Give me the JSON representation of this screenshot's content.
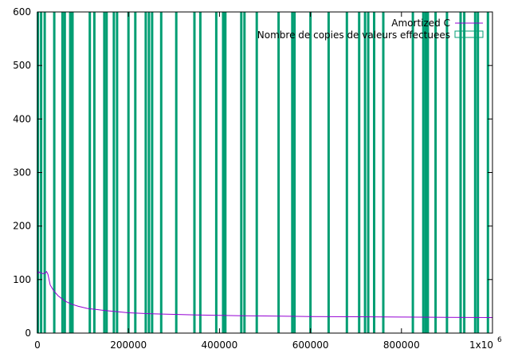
{
  "chart_data": {
    "type": "line",
    "title": "",
    "xlabel": "",
    "ylabel": "",
    "xlim": [
      0,
      1000000
    ],
    "ylim": [
      0,
      600
    ],
    "grid": false,
    "legend_position": "top-right",
    "x_ticks": [
      {
        "value": 0,
        "label": "0"
      },
      {
        "value": 200000,
        "label": "200000"
      },
      {
        "value": 400000,
        "label": "400000"
      },
      {
        "value": 600000,
        "label": "600000"
      },
      {
        "value": 800000,
        "label": "800000"
      },
      {
        "value": 1000000,
        "label": "1x10",
        "superscript": "6"
      }
    ],
    "y_ticks": [
      {
        "value": 0,
        "label": "0"
      },
      {
        "value": 100,
        "label": "100"
      },
      {
        "value": 200,
        "label": "200"
      },
      {
        "value": 300,
        "label": "300"
      },
      {
        "value": 400,
        "label": "400"
      },
      {
        "value": 500,
        "label": "500"
      },
      {
        "value": 600,
        "label": "600"
      }
    ],
    "series": [
      {
        "name": "Amortized C",
        "kind": "line",
        "color": "#9400d3",
        "points": [
          [
            0,
            117
          ],
          [
            2000,
            112
          ],
          [
            5000,
            114
          ],
          [
            8000,
            112
          ],
          [
            12000,
            111
          ],
          [
            17000,
            112
          ],
          [
            20000,
            115
          ],
          [
            23000,
            110
          ],
          [
            28000,
            90
          ],
          [
            35000,
            80
          ],
          [
            45000,
            70
          ],
          [
            60000,
            60
          ],
          [
            75000,
            54
          ],
          [
            90000,
            50
          ],
          [
            110000,
            46
          ],
          [
            130000,
            44
          ],
          [
            150000,
            42
          ],
          [
            175000,
            40
          ],
          [
            200000,
            38
          ],
          [
            250000,
            36
          ],
          [
            300000,
            35
          ],
          [
            350000,
            34
          ],
          [
            400000,
            33
          ],
          [
            450000,
            32.5
          ],
          [
            500000,
            32
          ],
          [
            600000,
            31
          ],
          [
            700000,
            30.5
          ],
          [
            800000,
            30
          ],
          [
            900000,
            29.5
          ],
          [
            1000000,
            29
          ]
        ]
      },
      {
        "name": "Nombre de copies de valeurs effectuees",
        "kind": "impulses",
        "color": "#009e73",
        "impulses": [
          {
            "x": 1000,
            "y": 600
          },
          {
            "x": 8000,
            "y": 600
          },
          {
            "x": 16000,
            "y": 600
          },
          {
            "x": 37000,
            "y": 600
          },
          {
            "x": 55000,
            "y": 600
          },
          {
            "x": 60000,
            "y": 600
          },
          {
            "x": 72000,
            "y": 600
          },
          {
            "x": 77000,
            "y": 600
          },
          {
            "x": 115000,
            "y": 600
          },
          {
            "x": 125000,
            "y": 600
          },
          {
            "x": 147000,
            "y": 600
          },
          {
            "x": 152000,
            "y": 600
          },
          {
            "x": 168000,
            "y": 600
          },
          {
            "x": 175000,
            "y": 600
          },
          {
            "x": 200000,
            "y": 600
          },
          {
            "x": 215000,
            "y": 600
          },
          {
            "x": 238000,
            "y": 600
          },
          {
            "x": 245000,
            "y": 600
          },
          {
            "x": 252000,
            "y": 600
          },
          {
            "x": 272000,
            "y": 600
          },
          {
            "x": 305000,
            "y": 600
          },
          {
            "x": 345000,
            "y": 600
          },
          {
            "x": 358000,
            "y": 600
          },
          {
            "x": 393000,
            "y": 600
          },
          {
            "x": 408000,
            "y": 600
          },
          {
            "x": 413000,
            "y": 600
          },
          {
            "x": 448000,
            "y": 600
          },
          {
            "x": 455000,
            "y": 600
          },
          {
            "x": 482000,
            "y": 600
          },
          {
            "x": 530000,
            "y": 600
          },
          {
            "x": 560000,
            "y": 600
          },
          {
            "x": 565000,
            "y": 600
          },
          {
            "x": 600000,
            "y": 600
          },
          {
            "x": 640000,
            "y": 600
          },
          {
            "x": 680000,
            "y": 600
          },
          {
            "x": 707000,
            "y": 600
          },
          {
            "x": 720000,
            "y": 600
          },
          {
            "x": 727000,
            "y": 600
          },
          {
            "x": 740000,
            "y": 600
          },
          {
            "x": 760000,
            "y": 600
          },
          {
            "x": 825000,
            "y": 600
          },
          {
            "x": 848000,
            "y": 600
          },
          {
            "x": 853000,
            "y": 600
          },
          {
            "x": 858000,
            "y": 600
          },
          {
            "x": 875000,
            "y": 600
          },
          {
            "x": 900000,
            "y": 600
          },
          {
            "x": 930000,
            "y": 600
          },
          {
            "x": 938000,
            "y": 600
          },
          {
            "x": 962000,
            "y": 600
          },
          {
            "x": 968000,
            "y": 600
          },
          {
            "x": 990000,
            "y": 600
          }
        ]
      }
    ]
  }
}
